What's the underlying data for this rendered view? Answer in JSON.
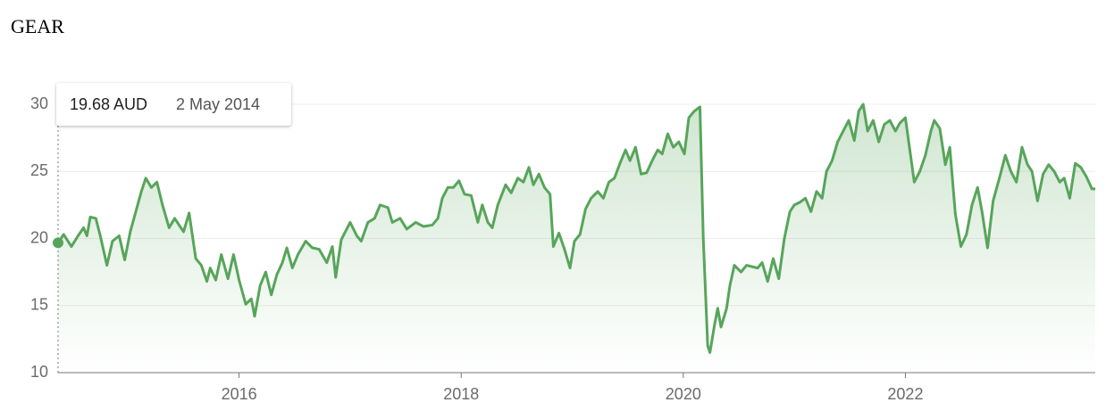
{
  "chart_data": {
    "type": "line",
    "title": "GEAR",
    "color": "#57a55a",
    "grid": true,
    "tooltip": {
      "value_text": "19.68 AUD",
      "date": "2 May 2014"
    },
    "xlim": [
      2014.37,
      2023.71
    ],
    "xticks": [
      2016,
      2018,
      2020,
      2022
    ],
    "ylim": [
      10,
      30
    ],
    "yticks": [
      10,
      15,
      20,
      25,
      30
    ],
    "x": [
      2014.37,
      2014.42,
      2014.49,
      2014.55,
      2014.6,
      2014.63,
      2014.66,
      2014.71,
      2014.75,
      2014.81,
      2014.86,
      2014.92,
      2014.97,
      2015.02,
      2015.12,
      2015.16,
      2015.21,
      2015.26,
      2015.31,
      2015.37,
      2015.42,
      2015.5,
      2015.55,
      2015.61,
      2015.66,
      2015.71,
      2015.74,
      2015.79,
      2015.84,
      2015.9,
      2015.95,
      2016.0,
      2016.06,
      2016.11,
      2016.14,
      2016.19,
      2016.24,
      2016.29,
      2016.34,
      2016.39,
      2016.43,
      2016.48,
      2016.53,
      2016.6,
      2016.66,
      2016.72,
      2016.79,
      2016.84,
      2016.87,
      2016.92,
      2017.0,
      2017.06,
      2017.1,
      2017.16,
      2017.22,
      2017.27,
      2017.34,
      2017.38,
      2017.45,
      2017.51,
      2017.59,
      2017.66,
      2017.74,
      2017.79,
      2017.83,
      2017.88,
      2017.93,
      2017.98,
      2018.03,
      2018.09,
      2018.15,
      2018.19,
      2018.24,
      2018.28,
      2018.33,
      2018.4,
      2018.45,
      2018.51,
      2018.56,
      2018.61,
      2018.65,
      2018.7,
      2018.75,
      2018.8,
      2018.83,
      2018.88,
      2018.93,
      2018.98,
      2019.02,
      2019.07,
      2019.12,
      2019.17,
      2019.23,
      2019.28,
      2019.33,
      2019.38,
      2019.43,
      2019.48,
      2019.52,
      2019.57,
      2019.62,
      2019.67,
      2019.72,
      2019.77,
      2019.81,
      2019.86,
      2019.91,
      2019.96,
      2020.01,
      2020.05,
      2020.1,
      2020.15,
      2020.18,
      2020.22,
      2020.24,
      2020.28,
      2020.31,
      2020.34,
      2020.39,
      2020.42,
      2020.46,
      2020.52,
      2020.57,
      2020.62,
      2020.67,
      2020.71,
      2020.76,
      2020.81,
      2020.86,
      2020.91,
      2020.96,
      2021.0,
      2021.05,
      2021.1,
      2021.15,
      2021.2,
      2021.25,
      2021.29,
      2021.34,
      2021.39,
      2021.44,
      2021.49,
      2021.54,
      2021.58,
      2021.62,
      2021.66,
      2021.71,
      2021.76,
      2021.81,
      2021.86,
      2021.91,
      2021.95,
      2022.0,
      2022.05,
      2022.08,
      2022.13,
      2022.18,
      2022.23,
      2022.26,
      2022.31,
      2022.36,
      2022.4,
      2022.45,
      2022.5,
      2022.55,
      2022.6,
      2022.65,
      2022.69,
      2022.74,
      2022.79,
      2022.85,
      2022.9,
      2022.95,
      2023.0,
      2023.05,
      2023.1,
      2023.14,
      2023.19,
      2023.24,
      2023.29,
      2023.34,
      2023.39,
      2023.43,
      2023.48,
      2023.53,
      2023.58,
      2023.63,
      2023.68,
      2023.71
    ],
    "values": [
      19.68,
      20.3,
      19.4,
      20.2,
      20.8,
      20.2,
      21.6,
      21.5,
      20.2,
      18.0,
      19.8,
      20.2,
      18.4,
      20.5,
      23.5,
      24.5,
      23.8,
      24.2,
      22.5,
      20.8,
      21.5,
      20.5,
      21.9,
      18.5,
      18.0,
      16.8,
      17.8,
      16.9,
      18.8,
      17.0,
      18.8,
      16.9,
      15.1,
      15.5,
      14.2,
      16.5,
      17.5,
      15.8,
      17.3,
      18.2,
      19.3,
      17.8,
      18.8,
      19.8,
      19.3,
      19.2,
      18.2,
      19.4,
      17.1,
      19.9,
      21.2,
      20.2,
      19.8,
      21.2,
      21.5,
      22.5,
      22.3,
      21.2,
      21.5,
      20.7,
      21.2,
      20.9,
      21.0,
      21.5,
      23.0,
      23.8,
      23.8,
      24.3,
      23.3,
      23.2,
      21.2,
      22.5,
      21.2,
      20.8,
      22.5,
      24.0,
      23.4,
      24.5,
      24.2,
      25.3,
      24.0,
      24.8,
      23.8,
      23.3,
      19.4,
      20.4,
      19.2,
      17.8,
      19.8,
      20.3,
      22.2,
      23.0,
      23.5,
      23.0,
      24.2,
      24.5,
      25.6,
      26.6,
      25.8,
      26.8,
      24.8,
      24.9,
      25.8,
      26.6,
      26.3,
      27.8,
      26.8,
      27.2,
      26.3,
      29.0,
      29.5,
      29.8,
      20.0,
      12.0,
      11.5,
      13.5,
      14.8,
      13.4,
      14.8,
      16.5,
      18.0,
      17.5,
      18.0,
      17.9,
      17.8,
      18.2,
      16.8,
      18.5,
      17.0,
      20.0,
      22.0,
      22.5,
      22.7,
      23.0,
      22.0,
      23.5,
      23.0,
      25.0,
      25.8,
      27.2,
      28.0,
      28.8,
      27.3,
      29.5,
      30.0,
      28.0,
      28.8,
      27.2,
      28.5,
      28.8,
      28.0,
      28.6,
      29.0,
      26.0,
      24.2,
      25.0,
      26.2,
      28.0,
      28.8,
      28.2,
      25.5,
      26.8,
      21.8,
      19.4,
      20.3,
      22.5,
      23.8,
      22.0,
      19.3,
      22.8,
      24.6,
      26.2,
      25.0,
      24.2,
      26.8,
      25.5,
      25.0,
      22.8,
      24.8,
      25.5,
      25.0,
      24.2,
      24.5,
      23.0,
      25.6,
      25.3,
      24.6,
      23.7,
      23.7
    ]
  }
}
